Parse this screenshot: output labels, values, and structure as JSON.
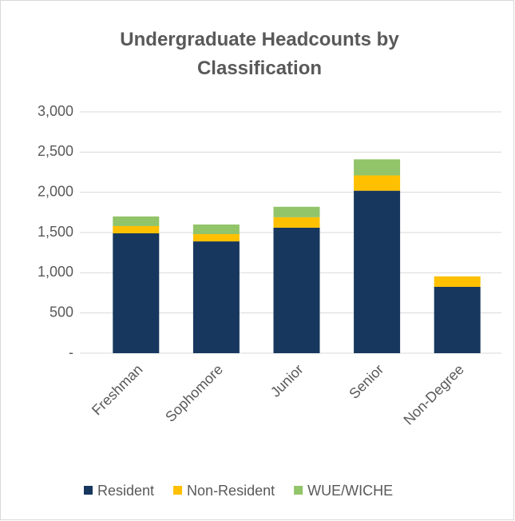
{
  "chart_data": {
    "type": "bar",
    "title": "Undergraduate Headcounts by Classification",
    "categories": [
      "Freshman",
      "Sophomore",
      "Junior",
      "Senior",
      "Non-Degree"
    ],
    "series": [
      {
        "name": "Resident",
        "color": "#17375e",
        "values": [
          1490,
          1390,
          1560,
          2020,
          825
        ]
      },
      {
        "name": "Non-Resident",
        "color": "#ffc000",
        "values": [
          90,
          90,
          130,
          190,
          130
        ]
      },
      {
        "name": "WUE/WICHE",
        "color": "#92c46a",
        "values": [
          120,
          120,
          130,
          200,
          0
        ]
      }
    ],
    "stacked": true,
    "ylim": [
      0,
      3000
    ],
    "yticks": [
      {
        "value": 0,
        "label": "-"
      },
      500,
      {
        "value": 1000,
        "label": "1,000"
      },
      {
        "value": 1500,
        "label": "1,500"
      },
      {
        "value": 2000,
        "label": "2,000"
      },
      {
        "value": 2500,
        "label": "2,500"
      },
      {
        "value": 3000,
        "label": "3,000"
      }
    ],
    "grid": true,
    "legend": "bottom"
  }
}
